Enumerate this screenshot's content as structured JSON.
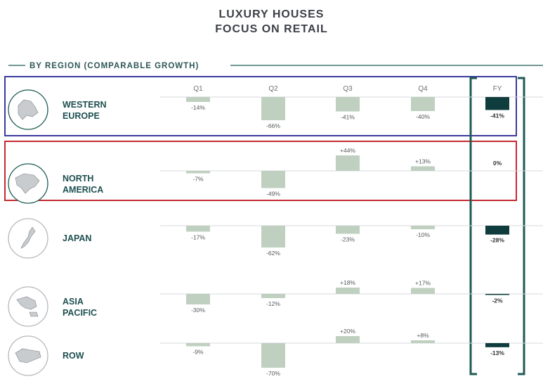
{
  "title_line1": "LUXURY HOUSES",
  "title_line2": "FOCUS ON RETAIL",
  "section_label": "BY REGION (COMPARABLE GROWTH)",
  "colors": {
    "bar": "#bfd0c0",
    "fy_bar": "#0f3d3e",
    "teal": "#1e5b55",
    "blue_box": "#3a3a9e",
    "red_box": "#c42a2f",
    "title": "#3b3f46"
  },
  "chart_data": {
    "type": "bar",
    "categories": [
      "Q1",
      "Q2",
      "Q3",
      "Q4",
      "FY"
    ],
    "regions": [
      {
        "name_lines": [
          "WESTERN",
          "EUROPE"
        ],
        "icon": "europe-map-icon",
        "values": [
          -14,
          -66,
          -41,
          -40
        ],
        "labels": [
          "-14%",
          "-66%",
          "-41%",
          "-40%"
        ],
        "fy": -41,
        "fy_label": "-41%",
        "highlight": "blue"
      },
      {
        "name_lines": [
          "NORTH",
          "AMERICA"
        ],
        "icon": "north-america-map-icon",
        "values": [
          -7,
          -49,
          44,
          13
        ],
        "labels": [
          "-7%",
          "-49%",
          "+44%",
          "+13%"
        ],
        "fy": 0,
        "fy_label": "0%",
        "highlight": "red"
      },
      {
        "name_lines": [
          "JAPAN"
        ],
        "icon": "japan-map-icon",
        "values": [
          -17,
          -62,
          -23,
          -10
        ],
        "labels": [
          "-17%",
          "-62%",
          "-23%",
          "-10%"
        ],
        "fy": -28,
        "fy_label": "-28%",
        "highlight": ""
      },
      {
        "name_lines": [
          "ASIA",
          "PACIFIC"
        ],
        "icon": "asia-pacific-map-icon",
        "values": [
          -30,
          -12,
          18,
          17
        ],
        "labels": [
          "-30%",
          "-12%",
          "+18%",
          "+17%"
        ],
        "fy": -2,
        "fy_label": "-2%",
        "highlight": ""
      },
      {
        "name_lines": [
          "ROW"
        ],
        "icon": "world-map-icon",
        "values": [
          -9,
          -70,
          20,
          8
        ],
        "labels": [
          "-9%",
          "-70%",
          "+20%",
          "+8%"
        ],
        "fy": -13,
        "fy_label": "-13%",
        "highlight": ""
      }
    ]
  }
}
